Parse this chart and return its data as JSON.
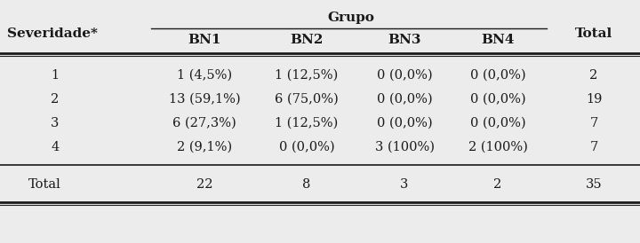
{
  "title_col1": "Severidade*",
  "group_header": "Grupo",
  "col_headers": [
    "BN1",
    "BN2",
    "BN3",
    "BN4"
  ],
  "total_header": "Total",
  "rows": [
    {
      "sev": "1",
      "bn1": "1 (4,5%)",
      "bn2": "1 (12,5%)",
      "bn3": "0 (0,0%)",
      "bn4": "0 (0,0%)",
      "total": "2"
    },
    {
      "sev": "2",
      "bn1": "13 (59,1%)",
      "bn2": "6 (75,0%)",
      "bn3": "0 (0,0%)",
      "bn4": "0 (0,0%)",
      "total": "19"
    },
    {
      "sev": "3",
      "bn1": "6 (27,3%)",
      "bn2": "1 (12,5%)",
      "bn3": "0 (0,0%)",
      "bn4": "0 (0,0%)",
      "total": "7"
    },
    {
      "sev": "4",
      "bn1": "2 (9,1%)",
      "bn2": "0 (0,0%)",
      "bn3": "3 (100%)",
      "bn4": "2 (100%)",
      "total": "7"
    }
  ],
  "total_row": {
    "sev": "Total",
    "bn1": "22",
    "bn2": "8",
    "bn3": "3",
    "bn4": "2",
    "total": "35"
  },
  "bg_color": "#ececec",
  "text_color": "#1a1a1a",
  "font_size": 10.5,
  "header_font_size": 11.0
}
